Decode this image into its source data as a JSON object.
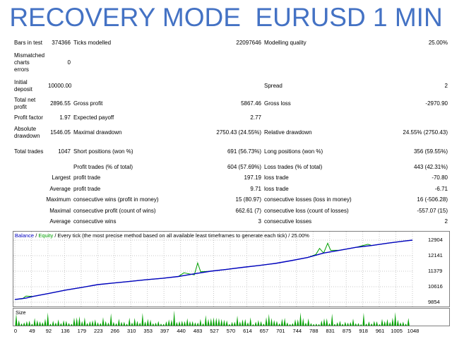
{
  "title": "RECOVERY MODE  EURUSD 1 MIN",
  "report": {
    "bars_in_test_label": "Bars in test",
    "bars_in_test": "374366",
    "ticks_modelled_label": "Ticks modelled",
    "ticks_modelled": "22097646",
    "modelling_quality_label": "Modelling quality",
    "modelling_quality": "25.00%",
    "mismatched_label": "Mismatched charts errors",
    "mismatched": "0",
    "initial_deposit_label": "Initial deposit",
    "initial_deposit": "10000.00",
    "spread_label": "Spread",
    "spread": "2",
    "total_net_profit_label": "Total net profit",
    "total_net_profit": "2896.55",
    "gross_profit_label": "Gross profit",
    "gross_profit": "5867.46",
    "gross_loss_label": "Gross loss",
    "gross_loss": "-2970.90",
    "profit_factor_label": "Profit factor",
    "profit_factor": "1.97",
    "expected_payoff_label": "Expected payoff",
    "expected_payoff": "2.77",
    "absolute_drawdown_label": "Absolute drawdown",
    "absolute_drawdown": "1546.05",
    "maximal_drawdown_label": "Maximal drawdown",
    "maximal_drawdown": "2750.43 (24.55%)",
    "relative_drawdown_label": "Relative drawdown",
    "relative_drawdown": "24.55% (2750.43)",
    "total_trades_label": "Total trades",
    "total_trades": "1047",
    "short_positions_label": "Short positions (won %)",
    "short_positions": "691 (56.73%)",
    "long_positions_label": "Long positions (won %)",
    "long_positions": "356 (59.55%)",
    "profit_trades_label": "Profit trades (% of total)",
    "profit_trades": "604 (57.69%)",
    "loss_trades_label": "Loss trades (% of total)",
    "loss_trades": "443 (42.31%)",
    "largest_label": "Largest",
    "largest_profit_label": "profit trade",
    "largest_profit": "197.19",
    "largest_loss_label": "loss trade",
    "largest_loss": "-70.80",
    "average_label": "Average",
    "average_profit_label": "profit trade",
    "average_profit": "9.71",
    "average_loss_label": "loss trade",
    "average_loss": "-6.71",
    "maximum_label": "Maximum",
    "max_cons_wins_label": "consecutive wins (profit in money)",
    "max_cons_wins": "15 (80.97)",
    "max_cons_losses_label": "consecutive losses (loss in money)",
    "max_cons_losses": "16 (-506.28)",
    "maximal_label": "Maximal",
    "maximal_cons_profit_label": "consecutive profit (count of wins)",
    "maximal_cons_profit": "662.61 (7)",
    "maximal_cons_loss_label": "consecutive loss (count of losses)",
    "maximal_cons_loss": "-557.07 (15)",
    "average2_label": "Average",
    "avg_cons_wins_label": "consecutive wins",
    "avg_cons_wins": "3",
    "avg_cons_losses_label": "consecutive losses",
    "avg_cons_losses": "2"
  },
  "chart": {
    "legend_balance": "Balance",
    "legend_sep": " / ",
    "legend_equity": "Equity",
    "legend_rest": " / Every tick (the most precise method based on all available least timeframes to generate each tick) / 25.00%",
    "volume_label": "Size",
    "colors": {
      "balance": "#0000c0",
      "equity": "#00a000",
      "volume": "#00a000"
    }
  },
  "chart_data": {
    "type": "line",
    "y_ticks": [
      "12904",
      "12141",
      "11379",
      "10616",
      "9854"
    ],
    "x_ticks": [
      "0",
      "49",
      "92",
      "136",
      "179",
      "223",
      "266",
      "310",
      "353",
      "397",
      "440",
      "483",
      "527",
      "570",
      "614",
      "657",
      "701",
      "744",
      "788",
      "831",
      "875",
      "918",
      "961",
      "1005",
      "1048"
    ],
    "ylim": [
      9854,
      12904
    ],
    "xlim": [
      0,
      1070
    ],
    "series": [
      {
        "name": "Balance",
        "x": [
          0,
          30,
          49,
          92,
          136,
          179,
          223,
          266,
          310,
          353,
          397,
          440,
          483,
          527,
          570,
          614,
          657,
          701,
          744,
          788,
          831,
          875,
          918,
          961,
          1005,
          1048,
          1070
        ],
        "values": [
          9990,
          10060,
          10140,
          10290,
          10450,
          10580,
          10720,
          10800,
          10880,
          10960,
          11030,
          11120,
          11250,
          11380,
          11470,
          11570,
          11660,
          11760,
          11900,
          12050,
          12270,
          12410,
          12550,
          12640,
          12760,
          12860,
          12904
        ]
      },
      {
        "name": "Equity",
        "x": [
          0,
          20,
          30,
          49,
          92,
          136,
          179,
          223,
          266,
          310,
          353,
          397,
          440,
          455,
          483,
          492,
          500,
          527,
          570,
          614,
          657,
          701,
          744,
          788,
          810,
          820,
          831,
          842,
          850,
          875,
          918,
          950,
          961,
          1005,
          1048,
          1070
        ],
        "values": [
          9990,
          10020,
          10160,
          10140,
          10290,
          10450,
          10580,
          10720,
          10800,
          10880,
          10960,
          11030,
          11120,
          11300,
          11200,
          11780,
          11350,
          11380,
          11470,
          11570,
          11660,
          11760,
          11900,
          12050,
          12200,
          12500,
          12270,
          12750,
          12400,
          12410,
          12550,
          12700,
          12640,
          12760,
          12860,
          12904
        ]
      }
    ]
  }
}
